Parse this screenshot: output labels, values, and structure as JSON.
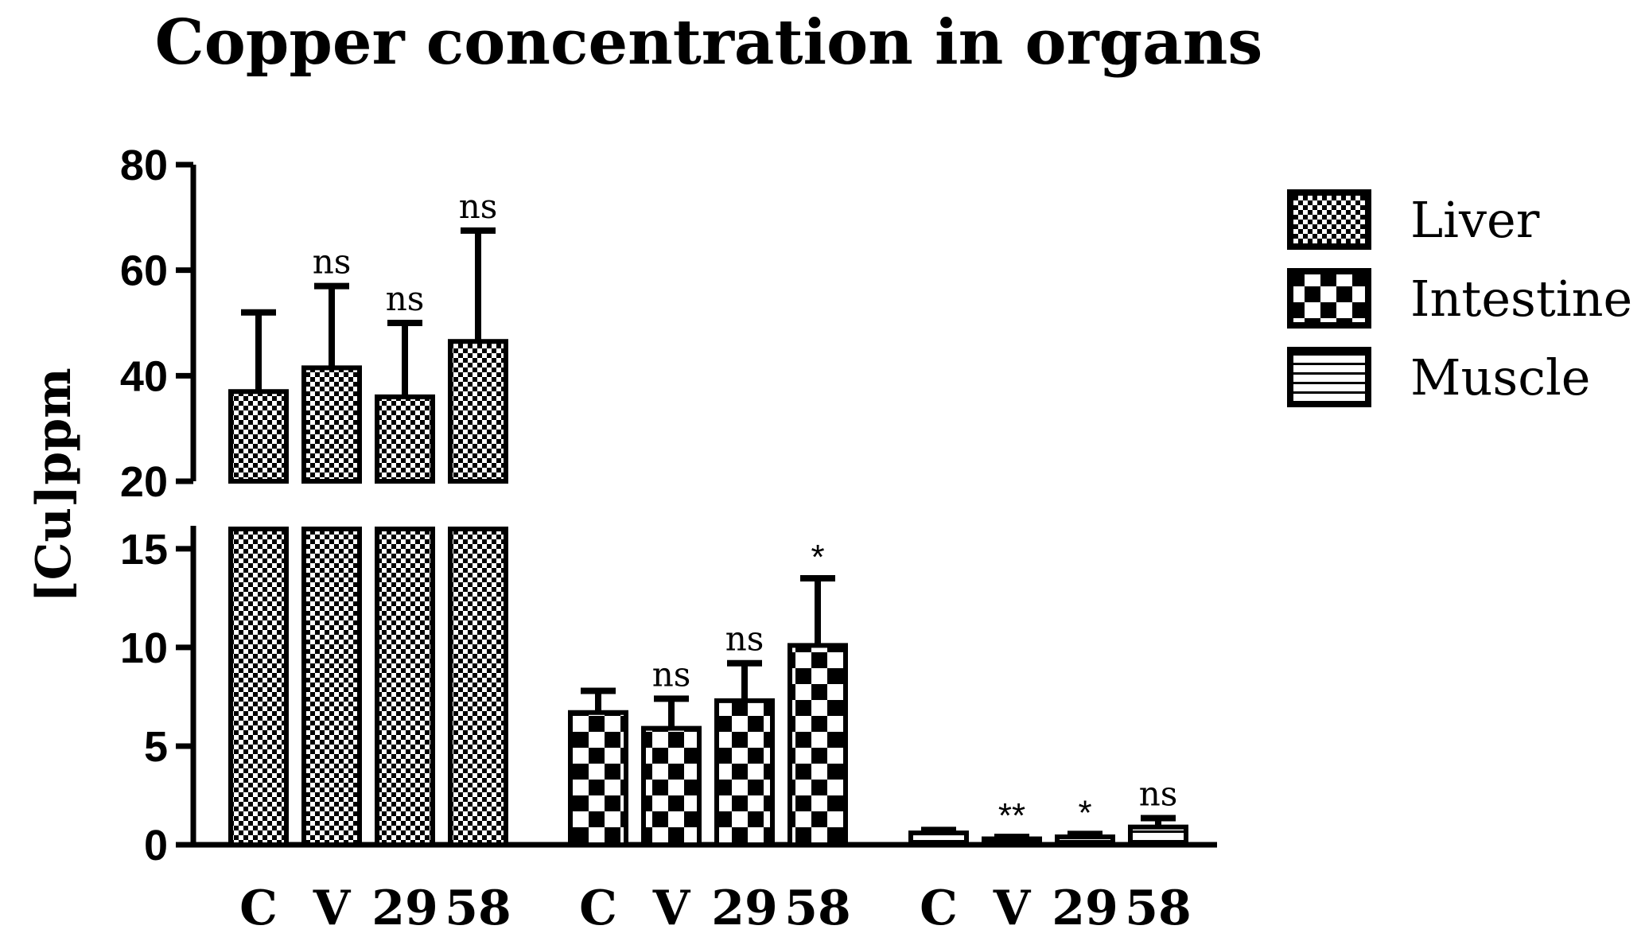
{
  "chart_data": {
    "type": "bar",
    "title": "Copper concentration in organs",
    "ylabel": "[Cu]ppm",
    "xlabel": "",
    "y_axis_break": [
      16,
      20
    ],
    "y_lower_range": [
      0,
      16
    ],
    "y_upper_range": [
      20,
      80
    ],
    "y_ticks": [
      "0",
      "5",
      "10",
      "15",
      "20",
      "40",
      "60",
      "80"
    ],
    "legend_position": "top-right",
    "groups": [
      {
        "name": "Liver",
        "pattern": "fine-check",
        "categories": [
          "C",
          "V",
          "29",
          "58"
        ],
        "values": [
          37,
          41.5,
          36,
          46.5
        ],
        "errors": [
          15,
          15.5,
          14,
          21
        ],
        "annotations": [
          "",
          "ns",
          "ns",
          "ns"
        ]
      },
      {
        "name": "Intestine",
        "pattern": "coarse-check",
        "categories": [
          "C",
          "V",
          "29",
          "58"
        ],
        "values": [
          6.7,
          5.9,
          7.3,
          10.1
        ],
        "errors": [
          1.1,
          1.5,
          1.9,
          3.4
        ],
        "annotations": [
          "",
          "ns",
          "ns",
          "*"
        ]
      },
      {
        "name": "Muscle",
        "pattern": "horizontal-lines",
        "categories": [
          "C",
          "V",
          "29",
          "58"
        ],
        "values": [
          0.6,
          0.3,
          0.4,
          0.9
        ],
        "errors": [
          0.15,
          0.1,
          0.15,
          0.45
        ],
        "annotations": [
          "",
          "**",
          "*",
          "ns"
        ]
      }
    ]
  }
}
